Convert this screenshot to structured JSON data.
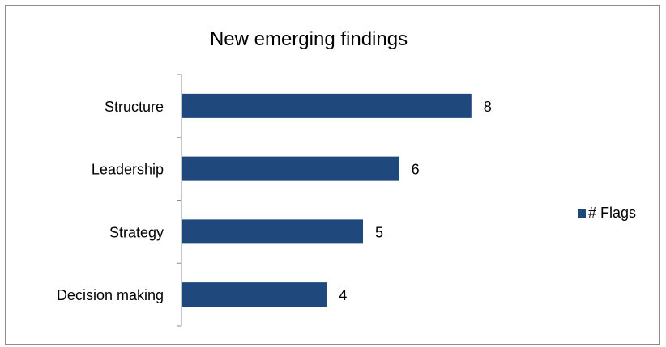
{
  "chart_data": {
    "type": "bar",
    "orientation": "horizontal",
    "title": "New emerging findings",
    "categories": [
      "Structure",
      "Leadership",
      "Strategy",
      "Decision making"
    ],
    "series": [
      {
        "name": "# Flags",
        "values": [
          8,
          6,
          5,
          4
        ],
        "color": "#1f497d"
      }
    ],
    "data_labels": true,
    "xlim": [
      0,
      10
    ],
    "grid": false,
    "legend_position": "right"
  }
}
